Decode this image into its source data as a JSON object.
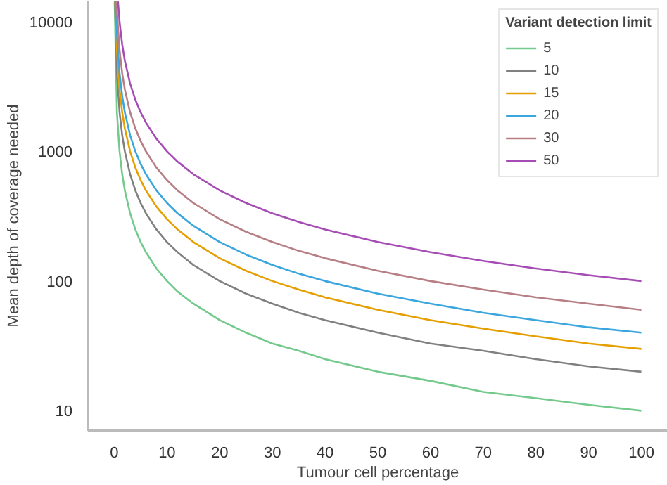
{
  "chart_data": {
    "type": "line",
    "xlabel": "Tumour cell percentage",
    "ylabel": "Mean depth of coverage needed",
    "legend_title": "Variant detection limit",
    "log": true,
    "grid": false,
    "legend": "top right",
    "marker": "none",
    "line_style": "solid",
    "xlim": [
      -5,
      105
    ],
    "xticks": [
      0,
      10,
      20,
      30,
      40,
      50,
      60,
      70,
      80,
      90,
      100
    ],
    "ylim": [
      7,
      14500
    ],
    "yticks": [
      10,
      100,
      1000,
      10000
    ],
    "series": [
      {
        "name": "5",
        "color": "#74c98c",
        "x": [
          0.07,
          0.5,
          1,
          1.5,
          2,
          3,
          4,
          5,
          6,
          8,
          10,
          12,
          15,
          20,
          25,
          30,
          35,
          40,
          50,
          60,
          70,
          80,
          90,
          100
        ],
        "values": [
          14300,
          2000,
          1000,
          667,
          500,
          333,
          250,
          200,
          167,
          125,
          100,
          83,
          67,
          50,
          40,
          33,
          29,
          25,
          20,
          17,
          14,
          12.5,
          11.1,
          10
        ]
      },
      {
        "name": "10",
        "color": "#808080",
        "x": [
          0.14,
          0.5,
          1,
          1.5,
          2,
          3,
          4,
          5,
          6,
          8,
          10,
          12,
          15,
          20,
          25,
          30,
          35,
          40,
          50,
          60,
          70,
          80,
          90,
          100
        ],
        "values": [
          14300,
          4000,
          2000,
          1333,
          1000,
          667,
          500,
          400,
          333,
          250,
          200,
          167,
          133,
          100,
          80,
          67,
          57,
          50,
          40,
          33,
          29,
          25,
          22,
          20
        ]
      },
      {
        "name": "15",
        "color": "#e69f00",
        "x": [
          0.21,
          0.5,
          1,
          1.5,
          2,
          3,
          4,
          5,
          6,
          8,
          10,
          12,
          15,
          20,
          25,
          30,
          35,
          40,
          50,
          60,
          70,
          80,
          90,
          100
        ],
        "values": [
          14300,
          6000,
          3000,
          2000,
          1500,
          1000,
          750,
          600,
          500,
          375,
          300,
          250,
          200,
          150,
          120,
          100,
          86,
          75,
          60,
          50,
          43,
          37.5,
          33,
          30
        ]
      },
      {
        "name": "20",
        "color": "#3aa6dd",
        "x": [
          0.28,
          0.5,
          1,
          1.5,
          2,
          3,
          4,
          5,
          6,
          8,
          10,
          12,
          15,
          20,
          25,
          30,
          35,
          40,
          50,
          60,
          70,
          80,
          90,
          100
        ],
        "values": [
          14300,
          8000,
          4000,
          2667,
          2000,
          1333,
          1000,
          800,
          667,
          500,
          400,
          333,
          267,
          200,
          160,
          133,
          114,
          100,
          80,
          67,
          57,
          50,
          44,
          40
        ]
      },
      {
        "name": "30",
        "color": "#b77f85",
        "x": [
          0.42,
          0.5,
          1,
          1.5,
          2,
          3,
          4,
          5,
          6,
          8,
          10,
          12,
          15,
          20,
          25,
          30,
          35,
          40,
          50,
          60,
          70,
          80,
          90,
          100
        ],
        "values": [
          14300,
          12000,
          6000,
          4000,
          3000,
          2000,
          1500,
          1200,
          1000,
          750,
          600,
          500,
          400,
          300,
          240,
          200,
          171,
          150,
          120,
          100,
          86,
          75,
          67,
          60
        ]
      },
      {
        "name": "50",
        "color": "#a64db5",
        "x": [
          0.7,
          1,
          1.5,
          2,
          3,
          4,
          5,
          6,
          8,
          10,
          12,
          15,
          20,
          25,
          30,
          35,
          40,
          50,
          60,
          70,
          80,
          90,
          100
        ],
        "values": [
          14300,
          10000,
          6667,
          5000,
          3333,
          2500,
          2000,
          1667,
          1250,
          1000,
          833,
          667,
          500,
          400,
          333,
          286,
          250,
          200,
          167,
          143,
          125,
          111,
          100
        ]
      }
    ]
  }
}
